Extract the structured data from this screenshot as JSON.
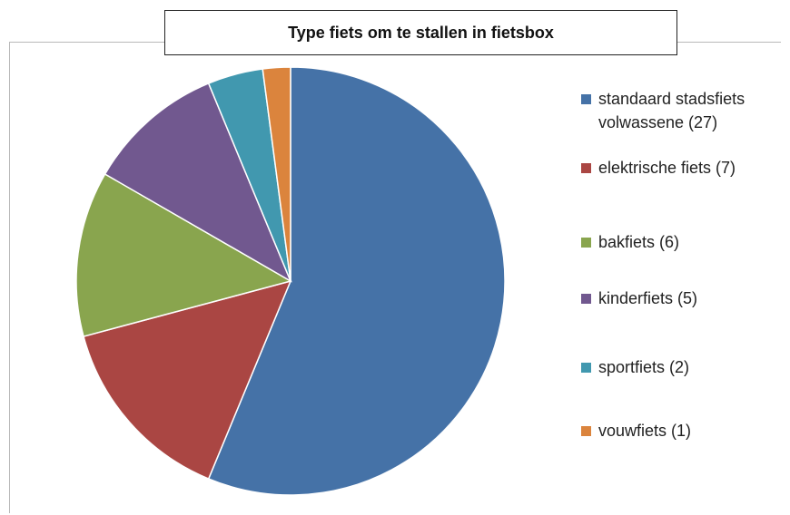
{
  "chart_data": {
    "type": "pie",
    "title": "Type fiets om te stallen in fietsbox",
    "slices": [
      {
        "label": "standaard stadsfiets volwassene (27)",
        "value": 27,
        "color": "#4572a7"
      },
      {
        "label": "elektrische fiets (7)",
        "value": 7,
        "color": "#aa4643"
      },
      {
        "label": "bakfiets (6)",
        "value": 6,
        "color": "#89a54e"
      },
      {
        "label": "kinderfiets (5)",
        "value": 5,
        "color": "#71588f"
      },
      {
        "label": "sportfiets (2)",
        "value": 2,
        "color": "#4198af"
      },
      {
        "label": "vouwfiets (1)",
        "value": 1,
        "color": "#db843d"
      }
    ],
    "legend_position": "right"
  }
}
